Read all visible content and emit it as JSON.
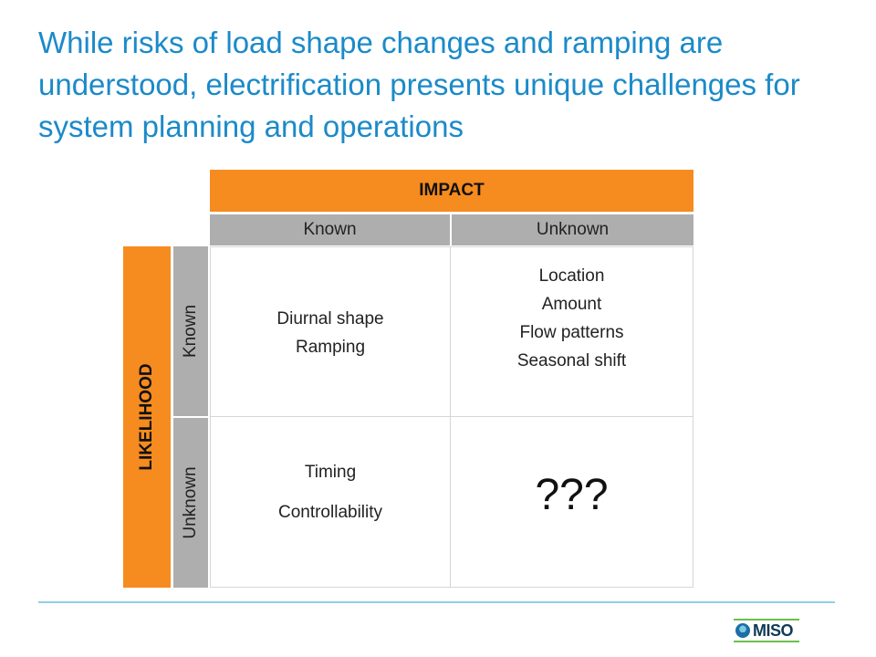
{
  "title": "While risks of load shape changes and ramping are understood, electrification presents unique challenges for system planning and operations",
  "matrix": {
    "impact_label": "IMPACT",
    "likelihood_label": "LIKELIHOOD",
    "impact_columns": [
      "Known",
      "Unknown"
    ],
    "likelihood_rows": [
      "Known",
      "Unknown"
    ],
    "cells": {
      "known_known": [
        "Diurnal shape",
        "Ramping"
      ],
      "known_unknown": [
        "Location",
        "Amount",
        "Flow patterns",
        "Seasonal shift"
      ],
      "unknown_known": [
        "Timing",
        "Controllability"
      ],
      "unknown_unknown": "???"
    }
  },
  "colors": {
    "title": "#1b8ac9",
    "header_orange": "#f68b1f",
    "subheader_gray": "#aeaeae",
    "divider": "#8fd0e8"
  },
  "logo": {
    "text": "MISO"
  }
}
